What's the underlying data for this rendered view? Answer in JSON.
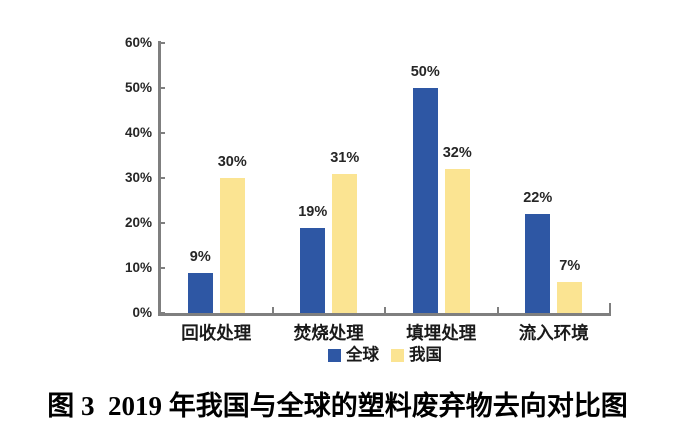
{
  "figure": {
    "caption": "图 3  2019 年我国与全球的塑料废弃物去向对比图"
  },
  "chart_data": {
    "type": "bar",
    "categories": [
      "回收处理",
      "焚烧处理",
      "填埋处理",
      "流入环境"
    ],
    "series": [
      {
        "name": "全球",
        "color": "#2E57A4",
        "values": [
          9,
          19,
          50,
          22
        ],
        "value_labels": [
          "9%",
          "19%",
          "50%",
          "22%"
        ]
      },
      {
        "name": "我国",
        "color": "#FBE492",
        "values": [
          30,
          31,
          32,
          7
        ],
        "value_labels": [
          "30%",
          "31%",
          "32%",
          "7%"
        ]
      }
    ],
    "title": "",
    "xlabel": "",
    "ylabel": "",
    "ylim": [
      0,
      60
    ],
    "ytick_step": 10,
    "ytick_labels": [
      "0%",
      "10%",
      "20%",
      "30%",
      "40%",
      "50%",
      "60%"
    ],
    "grid": false,
    "legend_position": "bottom-center",
    "axis_color": "#7F7F7F",
    "value_label_color": "#262626"
  }
}
